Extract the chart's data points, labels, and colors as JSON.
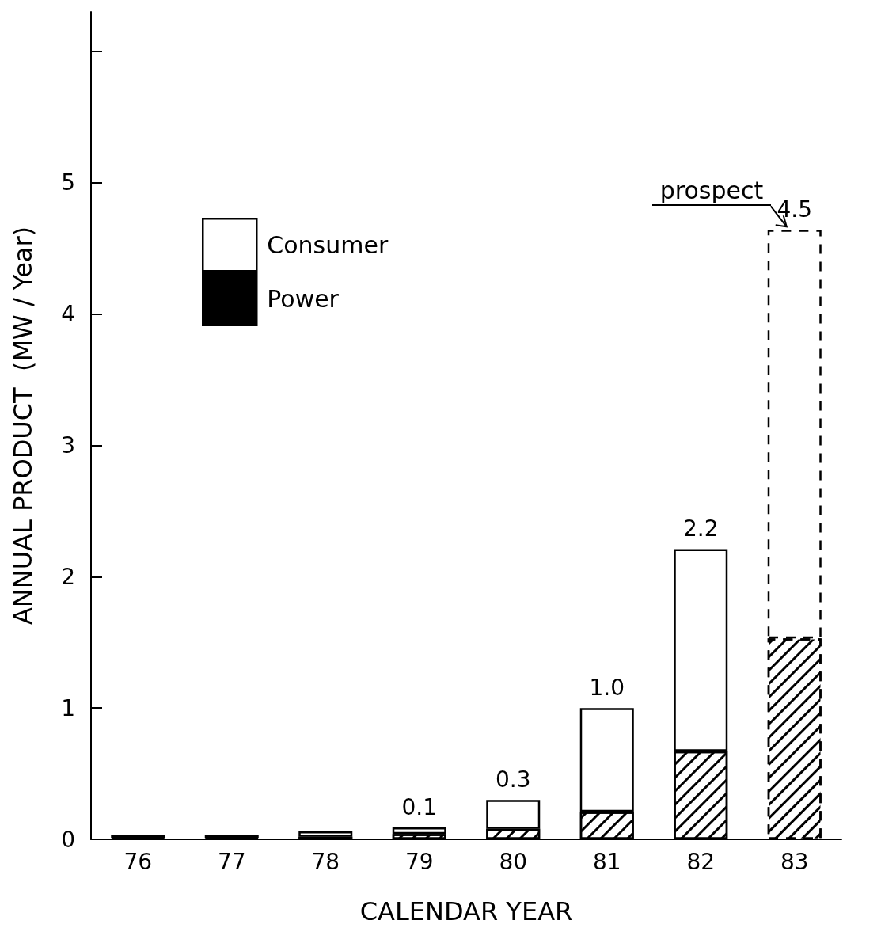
{
  "chart_data": {
    "type": "bar",
    "stacked": true,
    "xlabel": "CALENDAR YEAR",
    "ylabel": "ANNUAL PRODUCT  (MW / Year)",
    "categories": [
      "76",
      "77",
      "78",
      "79",
      "80",
      "81",
      "82",
      "83"
    ],
    "series": [
      {
        "name": "Power",
        "color": "#000000",
        "values": [
          0.01,
          0.01,
          0.02,
          0.04,
          0.08,
          0.21,
          0.67,
          1.53
        ]
      },
      {
        "name": "Consumer",
        "color": "#ffffff",
        "values": [
          0.02,
          0.02,
          0.04,
          0.05,
          0.22,
          0.79,
          1.54,
          3.11
        ]
      }
    ],
    "totals": [
      null,
      null,
      null,
      "0.1",
      "0.3",
      "1.0",
      "2.2",
      "4.5"
    ],
    "annotations": [
      {
        "text": "prospect",
        "x": "83",
        "y": 4.64
      }
    ],
    "ylim": [
      0,
      6.3
    ],
    "yticks": [
      0,
      1,
      2,
      3,
      4,
      5,
      {
        "value": 6,
        "label": null
      }
    ],
    "grid": false,
    "legend": "top left"
  }
}
